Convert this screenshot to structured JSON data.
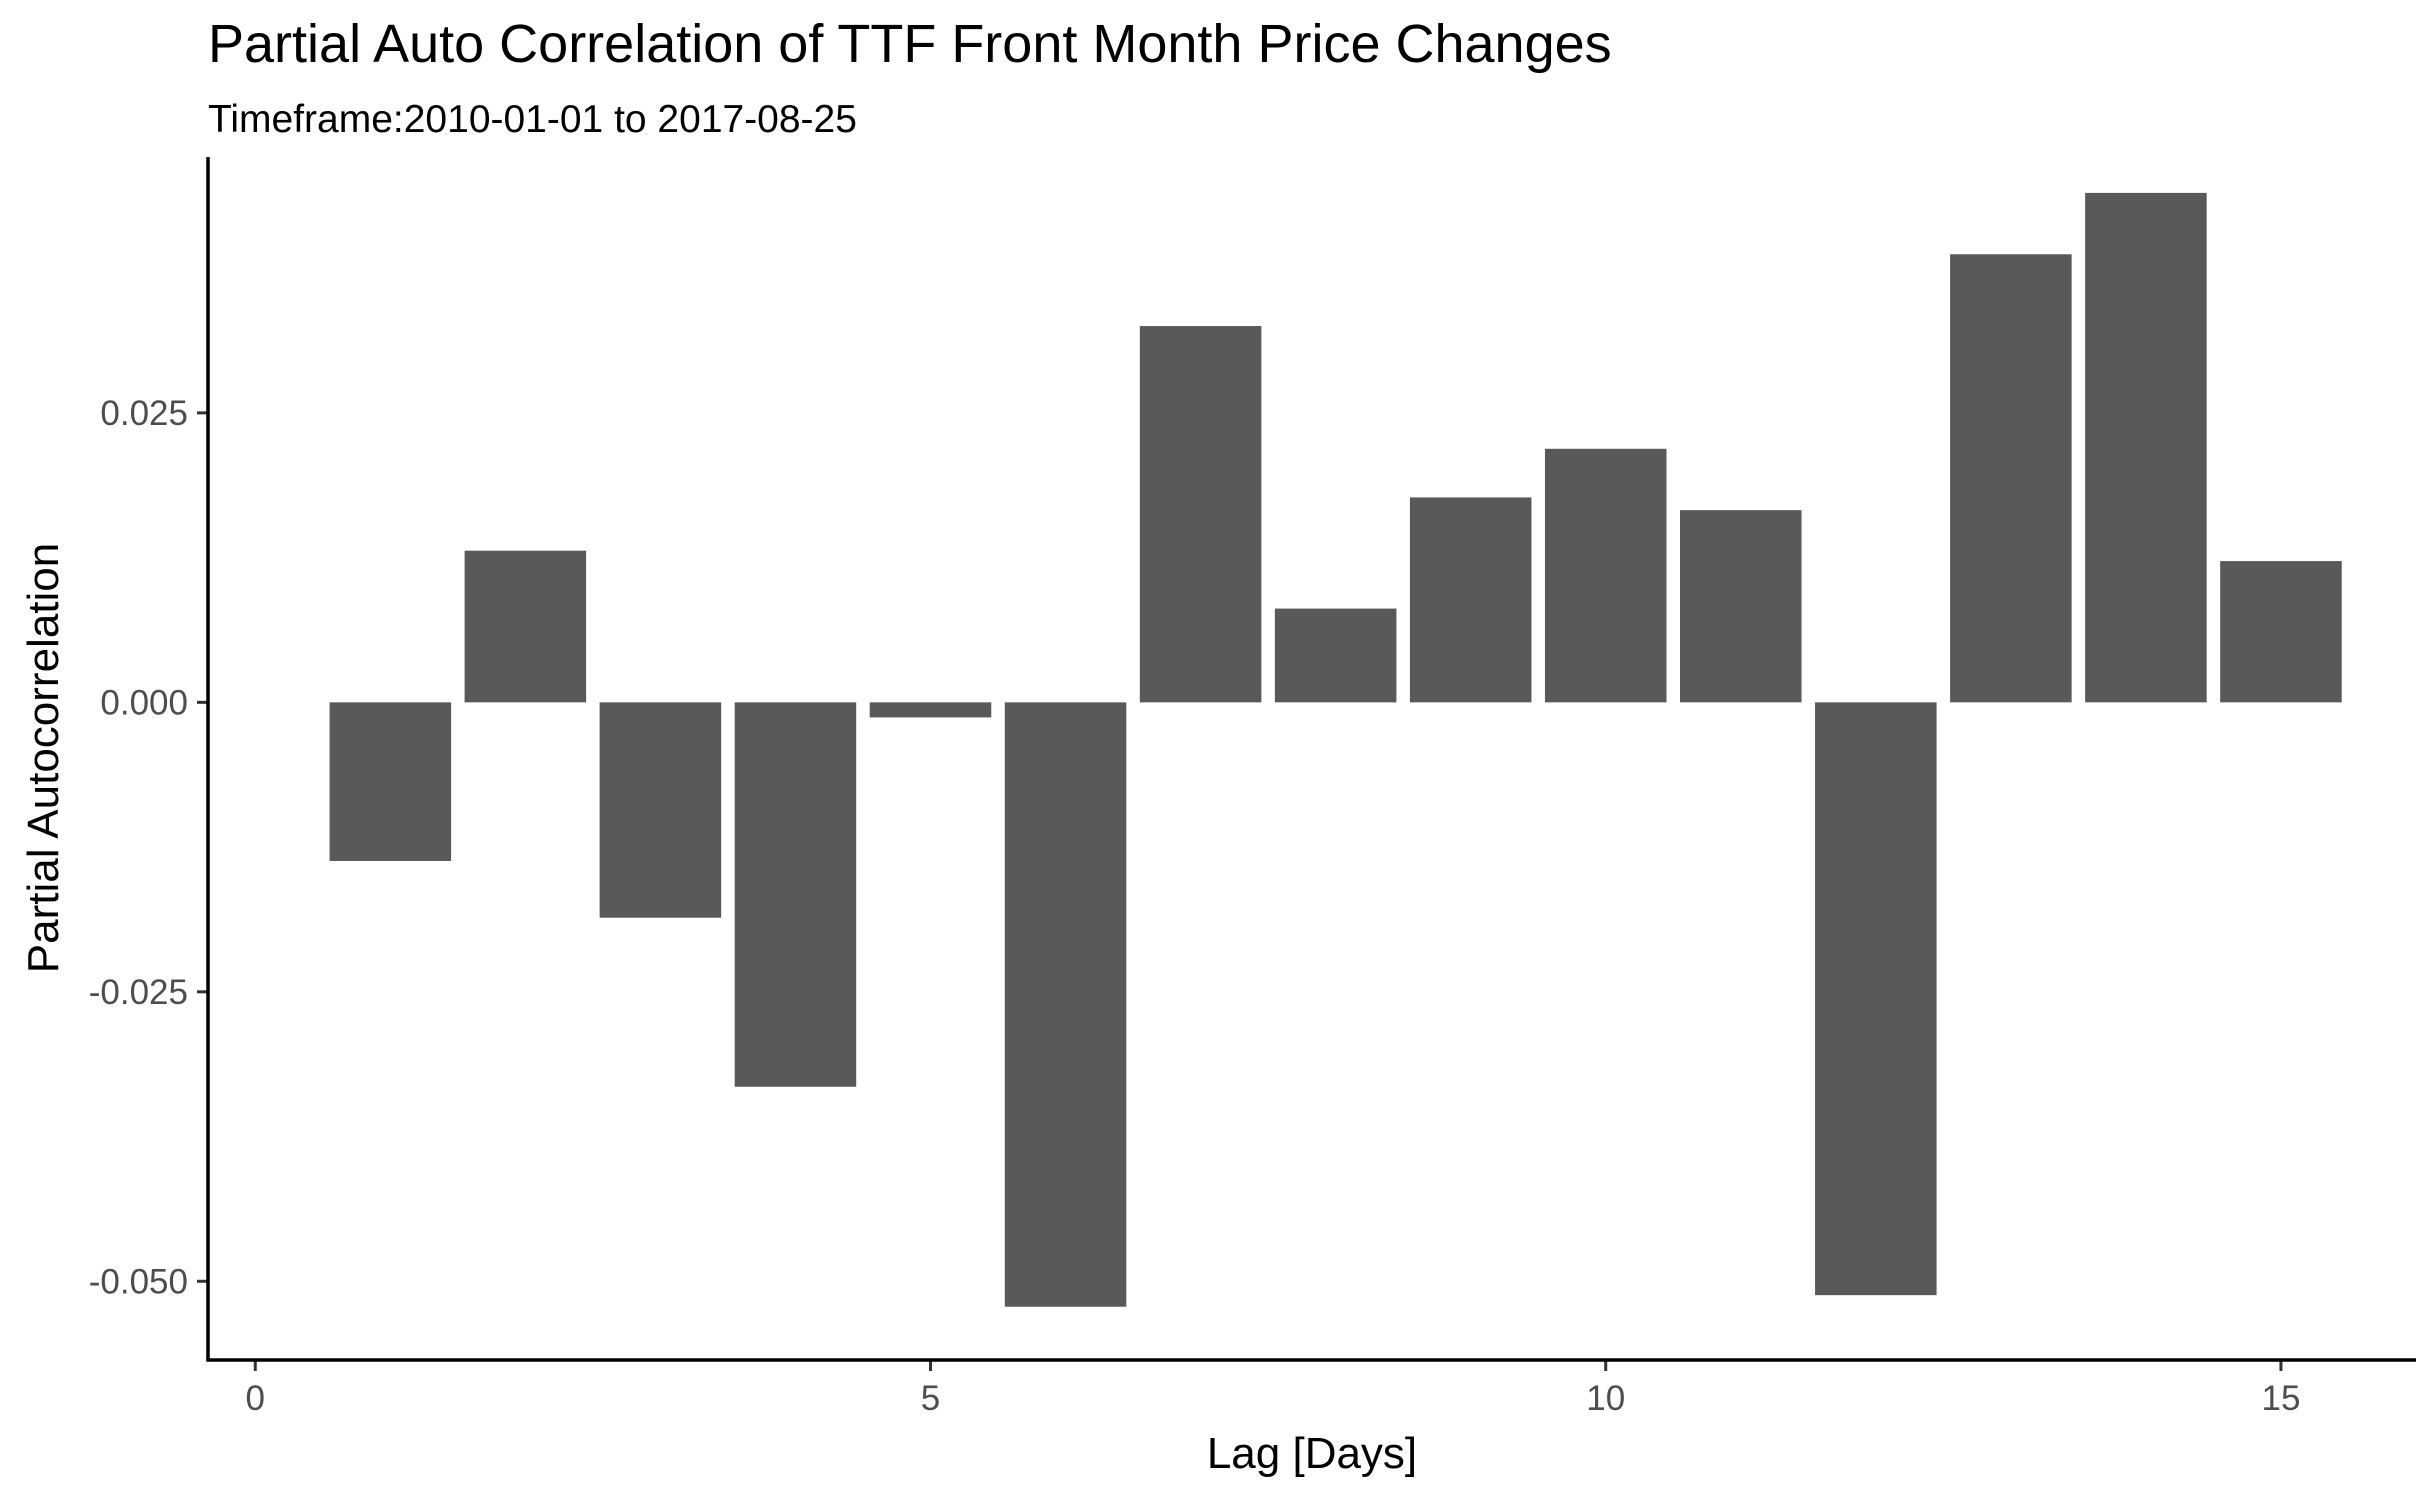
{
  "chart_data": {
    "type": "bar",
    "title": "Partial Auto Correlation of TTF Front Month Price Changes",
    "subtitle": "Timeframe:2010-01-01 to 2017-08-25",
    "xlabel": "Lag [Days]",
    "ylabel": "Partial Autocorrelation",
    "x": [
      1,
      2,
      3,
      4,
      5,
      6,
      7,
      8,
      9,
      10,
      11,
      12,
      13,
      14,
      15
    ],
    "values": [
      -0.0137,
      0.0131,
      -0.0186,
      -0.0332,
      -0.0013,
      -0.0522,
      0.0325,
      0.0081,
      0.0177,
      0.0219,
      0.0166,
      -0.0512,
      0.0387,
      0.044,
      0.0122
    ],
    "xlim": [
      -0.35,
      16.0
    ],
    "ylim": [
      -0.0568,
      0.0471
    ],
    "x_ticks": [
      0,
      5,
      10,
      15
    ],
    "x_tick_labels": [
      "0",
      "5",
      "10",
      "15"
    ],
    "y_ticks": [
      -0.05,
      -0.025,
      0.0,
      0.025
    ],
    "y_tick_labels": [
      "-0.050",
      "-0.025",
      "0.000",
      "0.025"
    ],
    "bar_color": "#595959",
    "grid": false,
    "legend": "none"
  }
}
